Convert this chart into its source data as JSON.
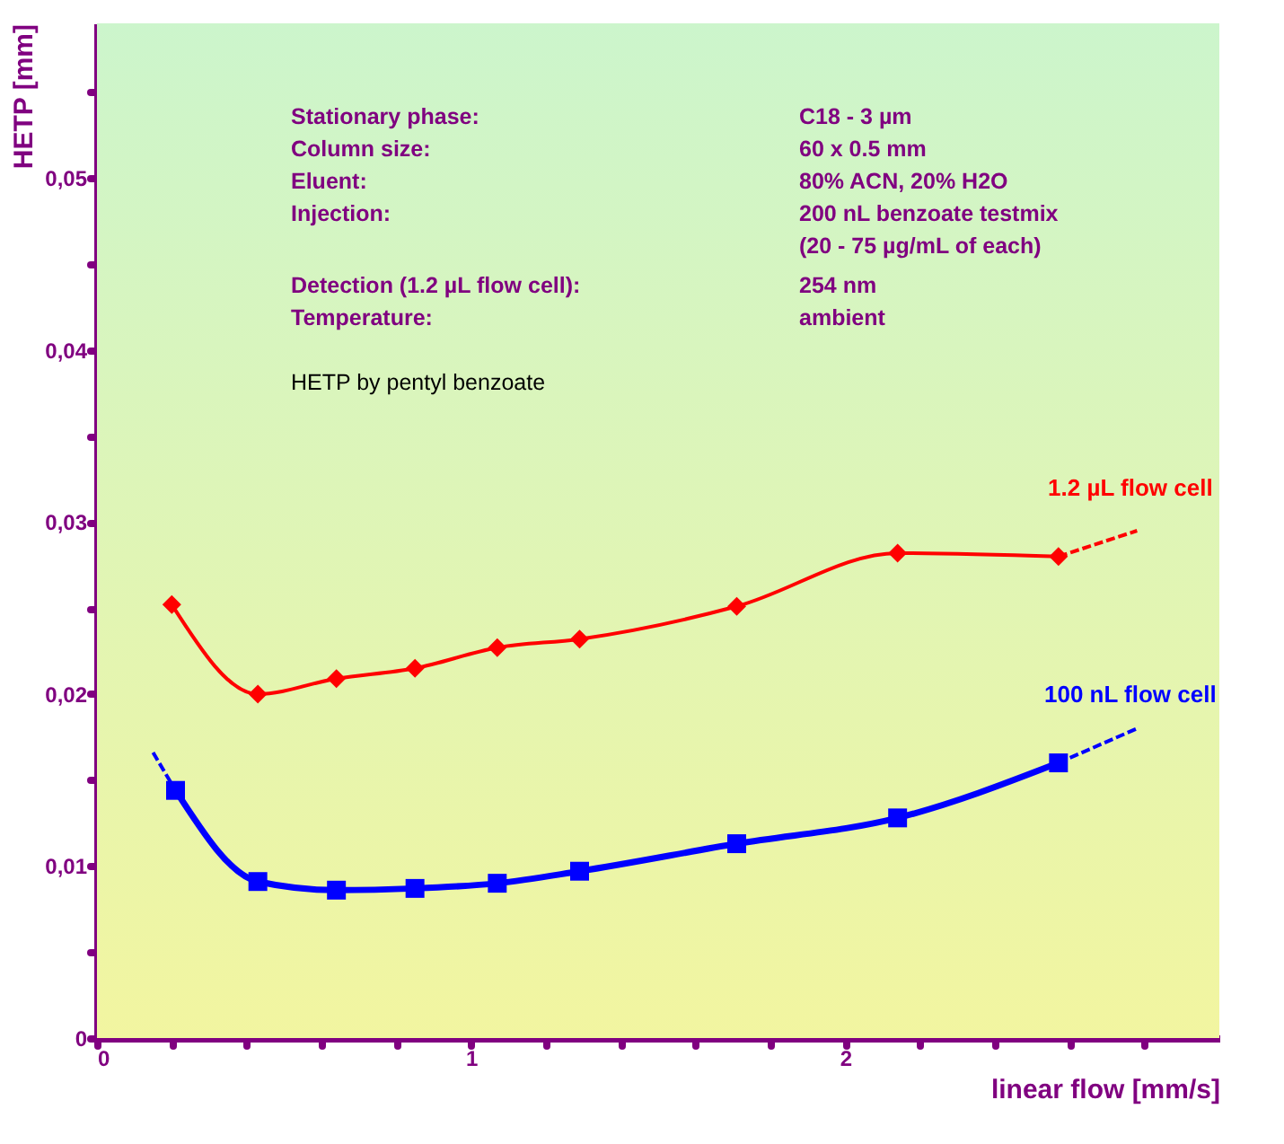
{
  "chart_data": {
    "type": "line",
    "xlabel": "linear flow [mm/s]",
    "ylabel": "HETP [mm]",
    "xlim": [
      0,
      3.0
    ],
    "ylim": [
      0,
      0.059
    ],
    "xticks": [
      {
        "value": 0,
        "label": "0"
      },
      {
        "value": 0.2,
        "label": null
      },
      {
        "value": 0.4,
        "label": null
      },
      {
        "value": 0.6,
        "label": null
      },
      {
        "value": 0.8,
        "label": null
      },
      {
        "value": 1,
        "label": "1"
      },
      {
        "value": 1.2,
        "label": null
      },
      {
        "value": 1.4,
        "label": null
      },
      {
        "value": 1.6,
        "label": null
      },
      {
        "value": 1.8,
        "label": null
      },
      {
        "value": 2,
        "label": "2"
      },
      {
        "value": 2.2,
        "label": null
      },
      {
        "value": 2.4,
        "label": null
      },
      {
        "value": 2.6,
        "label": null
      },
      {
        "value": 2.8,
        "label": null
      }
    ],
    "yticks": [
      {
        "value": 0,
        "label": "0"
      },
      {
        "value": 0.005,
        "label": null
      },
      {
        "value": 0.01,
        "label": "0,01"
      },
      {
        "value": 0.015,
        "label": null
      },
      {
        "value": 0.02,
        "label": "0,02"
      },
      {
        "value": 0.025,
        "label": null
      },
      {
        "value": 0.03,
        "label": "0,03"
      },
      {
        "value": 0.035,
        "label": null
      },
      {
        "value": 0.04,
        "label": "0,04"
      },
      {
        "value": 0.045,
        "label": null
      },
      {
        "value": 0.05,
        "label": "0,05"
      },
      {
        "value": 0.055,
        "label": null
      }
    ],
    "grid": false,
    "legend": false,
    "series": [
      {
        "name": "1.2 µL  flow cell",
        "color": "#ff0000",
        "marker": "diamond",
        "line_style": "solid",
        "x": [
          0.2,
          0.43,
          0.64,
          0.85,
          1.07,
          1.29,
          1.71,
          2.14,
          2.57
        ],
        "values": [
          0.0252,
          0.02,
          0.0209,
          0.0215,
          0.0227,
          0.0232,
          0.0251,
          0.0282,
          0.028
        ]
      },
      {
        "name": "100 nL flow cell",
        "color": "#0000ff",
        "marker": "square",
        "line_style": "solid",
        "x": [
          0.21,
          0.43,
          0.64,
          0.85,
          1.07,
          1.29,
          1.71,
          2.14,
          2.57
        ],
        "values": [
          0.0144,
          0.0091,
          0.0086,
          0.0087,
          0.009,
          0.0097,
          0.0113,
          0.0128,
          0.016
        ]
      },
      {
        "color": "#ff0000",
        "marker": "none",
        "line_style": "dashed",
        "x": [
          2.57,
          2.78
        ],
        "values": [
          0.028,
          0.0295
        ]
      },
      {
        "color": "#0000ff",
        "marker": "none",
        "line_style": "dashed",
        "x": [
          0.15,
          0.21
        ],
        "values": [
          0.0166,
          0.0144
        ]
      },
      {
        "color": "#0000ff",
        "marker": "none",
        "line_style": "dashed",
        "x": [
          2.57,
          2.78
        ],
        "values": [
          0.016,
          0.018
        ]
      }
    ],
    "annotations": [
      "Stationary phase:",
      "C18 - 3 µm",
      "Column size:",
      "60 x 0.5 mm",
      "Eluent:",
      "80% ACN, 20% H2O",
      "Injection:",
      "200 nL benzoate testmix",
      "(20 - 75 µg/mL of each)",
      "Detection (1.2 µL flow cell):",
      "254 nm",
      "Temperature:",
      "ambient",
      "HETP by pentyl benzoate"
    ]
  }
}
